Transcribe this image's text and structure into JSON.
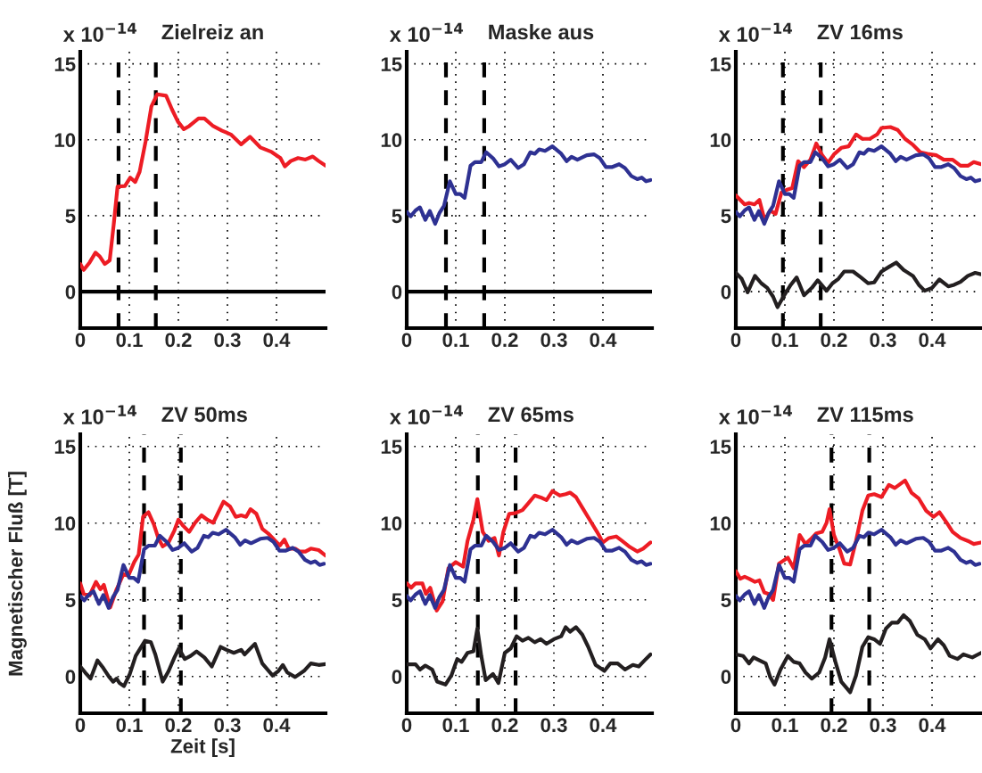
{
  "chart_data": [
    {
      "type": "line",
      "title": "Zielreiz an",
      "annotations": [
        "x 10$^{−14}$"
      ],
      "xlim": [
        0,
        0.5
      ],
      "ylim": [
        -2.4,
        15.8
      ],
      "xticks": [
        0,
        0.1,
        0.2,
        0.3,
        0.4
      ],
      "yticks": [
        0,
        5,
        10,
        15
      ],
      "grid": true,
      "ref_lines": [
        {
          "axis": "y",
          "value": 0,
          "line_style": "solid",
          "color": "#000000"
        },
        {
          "axis": "x",
          "value": 0.078,
          "line_style": "dashed",
          "color": "#000000"
        },
        {
          "axis": "x",
          "value": 0.154,
          "line_style": "dashed",
          "color": "#000000"
        }
      ],
      "series": [
        {
          "color": "#ed1c24",
          "x": [
            0,
            0.007,
            0.019,
            0.031,
            0.04,
            0.05,
            0.06,
            0.068,
            0.076,
            0.091,
            0.102,
            0.112,
            0.121,
            0.133,
            0.145,
            0.157,
            0.175,
            0.187,
            0.199,
            0.211,
            0.222,
            0.241,
            0.253,
            0.271,
            0.289,
            0.307,
            0.328,
            0.346,
            0.367,
            0.39,
            0.408,
            0.417,
            0.429,
            0.444,
            0.459,
            0.474,
            0.486,
            0.5
          ],
          "values": [
            1.82,
            1.43,
            1.92,
            2.57,
            2.31,
            1.82,
            2.06,
            4.37,
            6.92,
            6.96,
            7.51,
            7.22,
            7.9,
            9.86,
            12.2,
            13.0,
            12.9,
            12.0,
            11.2,
            10.7,
            10.9,
            11.4,
            11.4,
            10.9,
            10.6,
            10.35,
            9.7,
            10.2,
            9.5,
            9.2,
            8.8,
            8.25,
            8.6,
            8.8,
            8.7,
            8.9,
            8.6,
            8.3
          ]
        }
      ]
    },
    {
      "type": "line",
      "title": "Maske aus",
      "annotations": [
        "x 10$^{−14}$"
      ],
      "xlim": [
        0,
        0.5
      ],
      "ylim": [
        -2.4,
        15.8
      ],
      "xticks": [
        0,
        0.1,
        0.2,
        0.3,
        0.4
      ],
      "yticks": [
        0,
        5,
        10,
        15
      ],
      "grid": true,
      "ref_lines": [
        {
          "axis": "y",
          "value": 0,
          "line_style": "solid",
          "color": "#000000"
        },
        {
          "axis": "x",
          "value": 0.08,
          "line_style": "dashed",
          "color": "#000000"
        },
        {
          "axis": "x",
          "value": 0.158,
          "line_style": "dashed",
          "color": "#000000"
        }
      ],
      "series": [
        {
          "color": "#2e3192",
          "x": [
            0,
            0.008,
            0.018,
            0.027,
            0.038,
            0.047,
            0.058,
            0.067,
            0.076,
            0.088,
            0.1,
            0.109,
            0.118,
            0.13,
            0.139,
            0.152,
            0.162,
            0.176,
            0.188,
            0.2,
            0.212,
            0.227,
            0.239,
            0.252,
            0.261,
            0.27,
            0.282,
            0.297,
            0.315,
            0.326,
            0.336,
            0.348,
            0.367,
            0.382,
            0.394,
            0.406,
            0.418,
            0.433,
            0.445,
            0.458,
            0.47,
            0.479,
            0.488,
            0.497
          ],
          "values": [
            5.25,
            4.96,
            5.35,
            5.55,
            4.73,
            5.31,
            4.47,
            5.2,
            5.65,
            7.27,
            6.43,
            6.43,
            6.18,
            8.29,
            8.53,
            8.53,
            9.18,
            8.78,
            8.25,
            8.39,
            8.69,
            8.14,
            8.39,
            9.18,
            9.08,
            9.37,
            9.27,
            9.57,
            9.08,
            8.59,
            8.88,
            8.69,
            8.98,
            9.04,
            8.78,
            8.2,
            8.2,
            8.39,
            8.14,
            7.61,
            7.41,
            7.51,
            7.27,
            7.35
          ]
        }
      ]
    },
    {
      "type": "line",
      "title": "ZV 16ms",
      "annotations": [
        "x 10$^{−14}$"
      ],
      "xlim": [
        0,
        0.5
      ],
      "ylim": [
        -2.4,
        15.8
      ],
      "xticks": [
        0,
        0.1,
        0.2,
        0.3,
        0.4
      ],
      "yticks": [
        0,
        5,
        10,
        15
      ],
      "grid": true,
      "ref_lines": [
        {
          "axis": "x",
          "value": 0.096,
          "line_style": "dashed",
          "color": "#000000"
        },
        {
          "axis": "x",
          "value": 0.173,
          "line_style": "dashed",
          "color": "#000000"
        }
      ],
      "series": [
        {
          "color": "#ed1c24",
          "x": [
            0,
            0.009,
            0.018,
            0.027,
            0.038,
            0.048,
            0.059,
            0.07,
            0.081,
            0.093,
            0.106,
            0.115,
            0.127,
            0.139,
            0.152,
            0.164,
            0.176,
            0.188,
            0.2,
            0.215,
            0.23,
            0.245,
            0.258,
            0.273,
            0.288,
            0.297,
            0.315,
            0.33,
            0.345,
            0.361,
            0.376,
            0.391,
            0.409,
            0.424,
            0.442,
            0.458,
            0.473,
            0.485,
            0.5
          ],
          "values": [
            6.33,
            6.04,
            5.75,
            5.84,
            5.75,
            6.04,
            4.67,
            5.35,
            5.12,
            6.53,
            6.73,
            6.82,
            8.59,
            8.2,
            8.69,
            9.76,
            8.98,
            8.49,
            9.04,
            9.47,
            9.57,
            10.35,
            10.06,
            10.06,
            10.35,
            10.78,
            10.84,
            10.65,
            10.06,
            9.67,
            9.18,
            9.08,
            8.98,
            8.69,
            8.69,
            8.29,
            8.29,
            8.53,
            8.39
          ]
        },
        {
          "color": "#2e3192",
          "x": [
            0,
            0.008,
            0.018,
            0.027,
            0.038,
            0.047,
            0.058,
            0.067,
            0.076,
            0.088,
            0.1,
            0.109,
            0.118,
            0.13,
            0.139,
            0.152,
            0.162,
            0.176,
            0.188,
            0.2,
            0.212,
            0.227,
            0.239,
            0.252,
            0.261,
            0.27,
            0.282,
            0.297,
            0.315,
            0.326,
            0.336,
            0.348,
            0.367,
            0.382,
            0.394,
            0.406,
            0.418,
            0.433,
            0.445,
            0.458,
            0.47,
            0.479,
            0.488,
            0.497
          ],
          "values": [
            5.25,
            4.96,
            5.35,
            5.55,
            4.73,
            5.31,
            4.47,
            5.2,
            5.65,
            7.27,
            6.43,
            6.43,
            6.18,
            8.29,
            8.53,
            8.53,
            9.18,
            8.78,
            8.25,
            8.39,
            8.69,
            8.14,
            8.39,
            9.18,
            9.08,
            9.37,
            9.27,
            9.57,
            9.08,
            8.59,
            8.88,
            8.69,
            8.98,
            9.04,
            8.78,
            8.2,
            8.2,
            8.39,
            8.14,
            7.61,
            7.41,
            7.51,
            7.27,
            7.35
          ]
        },
        {
          "color": "#231f20",
          "x": [
            0,
            0.012,
            0.024,
            0.039,
            0.052,
            0.064,
            0.076,
            0.085,
            0.097,
            0.112,
            0.124,
            0.139,
            0.155,
            0.167,
            0.185,
            0.197,
            0.209,
            0.221,
            0.239,
            0.255,
            0.27,
            0.282,
            0.297,
            0.312,
            0.327,
            0.342,
            0.361,
            0.373,
            0.385,
            0.4,
            0.415,
            0.433,
            0.445,
            0.458,
            0.473,
            0.488,
            0.5
          ],
          "values": [
            1.24,
            0.84,
            -0.04,
            1.04,
            0.55,
            0.25,
            -0.33,
            -1.02,
            -0.33,
            0.45,
            0.94,
            -0.24,
            0.25,
            0.75,
            0.06,
            0.55,
            0.84,
            1.33,
            1.33,
            0.94,
            0.55,
            0.61,
            1.33,
            1.63,
            1.92,
            1.43,
            1.04,
            0.45,
            0.06,
            0.25,
            0.8,
            0.35,
            0.45,
            0.65,
            1.04,
            1.24,
            1.14
          ]
        }
      ]
    },
    {
      "type": "line",
      "title": "ZV 50ms",
      "annotations": [
        "x 10$^{−14}$"
      ],
      "xlabel": "Zeit [s]",
      "ylabel": "Magnetischer Fluß [T]",
      "xlim": [
        0,
        0.5
      ],
      "ylim": [
        -2.4,
        15.8
      ],
      "xticks": [
        0,
        0.1,
        0.2,
        0.3,
        0.4
      ],
      "yticks": [
        0,
        5,
        10,
        15
      ],
      "grid": true,
      "ref_lines": [
        {
          "axis": "x",
          "value": 0.13,
          "line_style": "dashed",
          "color": "#000000"
        },
        {
          "axis": "x",
          "value": 0.205,
          "line_style": "dashed",
          "color": "#000000"
        }
      ],
      "series": [
        {
          "color": "#ed1c24",
          "x": [
            0,
            0.007,
            0.019,
            0.032,
            0.041,
            0.048,
            0.061,
            0.074,
            0.088,
            0.098,
            0.11,
            0.119,
            0.128,
            0.139,
            0.15,
            0.159,
            0.168,
            0.18,
            0.192,
            0.2,
            0.21,
            0.222,
            0.234,
            0.247,
            0.259,
            0.271,
            0.28,
            0.292,
            0.305,
            0.317,
            0.328,
            0.338,
            0.347,
            0.359,
            0.371,
            0.383,
            0.395,
            0.407,
            0.416,
            0.425,
            0.438,
            0.447,
            0.459,
            0.47,
            0.486,
            0.5
          ],
          "values": [
            6.07,
            5.38,
            5.29,
            6.17,
            5.68,
            5.98,
            4.5,
            5.68,
            6.67,
            6.57,
            7.46,
            7.95,
            10.41,
            10.71,
            9.92,
            9.03,
            8.48,
            8.74,
            9.53,
            10.22,
            9.82,
            9.43,
            10.02,
            10.51,
            10.22,
            10.02,
            10.61,
            11.4,
            11.1,
            10.41,
            10.51,
            10.41,
            10.91,
            10.61,
            9.63,
            9.33,
            8.93,
            8.54,
            8.93,
            8.34,
            8.34,
            8.15,
            8.15,
            8.34,
            8.24,
            7.89
          ]
        },
        {
          "color": "#2e3192",
          "x": [
            0,
            0.008,
            0.018,
            0.027,
            0.038,
            0.047,
            0.058,
            0.067,
            0.076,
            0.088,
            0.1,
            0.109,
            0.118,
            0.13,
            0.139,
            0.152,
            0.162,
            0.176,
            0.188,
            0.2,
            0.212,
            0.227,
            0.239,
            0.252,
            0.261,
            0.27,
            0.282,
            0.297,
            0.315,
            0.326,
            0.336,
            0.348,
            0.367,
            0.382,
            0.394,
            0.406,
            0.418,
            0.433,
            0.445,
            0.458,
            0.47,
            0.479,
            0.488,
            0.497
          ],
          "values": [
            5.25,
            4.96,
            5.35,
            5.55,
            4.73,
            5.31,
            4.47,
            5.2,
            5.65,
            7.27,
            6.43,
            6.43,
            6.18,
            8.29,
            8.53,
            8.53,
            9.18,
            8.78,
            8.25,
            8.39,
            8.69,
            8.14,
            8.39,
            9.18,
            9.08,
            9.37,
            9.27,
            9.57,
            9.08,
            8.59,
            8.88,
            8.69,
            8.98,
            9.04,
            8.78,
            8.2,
            8.2,
            8.39,
            8.14,
            7.61,
            7.41,
            7.51,
            7.27,
            7.35
          ]
        },
        {
          "color": "#231f20",
          "x": [
            0,
            0.01,
            0.021,
            0.035,
            0.047,
            0.059,
            0.067,
            0.074,
            0.08,
            0.089,
            0.101,
            0.113,
            0.132,
            0.144,
            0.153,
            0.168,
            0.18,
            0.192,
            0.201,
            0.213,
            0.225,
            0.237,
            0.253,
            0.268,
            0.286,
            0.298,
            0.313,
            0.328,
            0.335,
            0.356,
            0.371,
            0.392,
            0.404,
            0.413,
            0.422,
            0.438,
            0.456,
            0.47,
            0.486,
            0.5
          ],
          "values": [
            0.65,
            0.26,
            -0.14,
            1.05,
            0.55,
            -0.04,
            -0.34,
            -0.14,
            -0.43,
            -0.63,
            0.16,
            1.34,
            2.33,
            2.23,
            1.44,
            -0.34,
            0.35,
            1.24,
            1.83,
            1.14,
            1.34,
            1.64,
            1.24,
            0.65,
            1.93,
            1.74,
            1.54,
            1.74,
            1.44,
            2.13,
            0.85,
            0.06,
            0.36,
            0.75,
            0.26,
            -0.04,
            0.36,
            0.85,
            0.75,
            0.81
          ]
        }
      ]
    },
    {
      "type": "line",
      "title": "ZV 65ms",
      "annotations": [
        "x 10$^{−14}$"
      ],
      "xlim": [
        0,
        0.5
      ],
      "ylim": [
        -2.4,
        15.8
      ],
      "xticks": [
        0,
        0.1,
        0.2,
        0.3,
        0.4
      ],
      "yticks": [
        0,
        5,
        10,
        15
      ],
      "grid": true,
      "ref_lines": [
        {
          "axis": "x",
          "value": 0.145,
          "line_style": "dashed",
          "color": "#000000"
        },
        {
          "axis": "x",
          "value": 0.222,
          "line_style": "dashed",
          "color": "#000000"
        }
      ],
      "series": [
        {
          "color": "#ed1c24",
          "x": [
            0,
            0.009,
            0.018,
            0.032,
            0.039,
            0.048,
            0.061,
            0.073,
            0.085,
            0.1,
            0.115,
            0.124,
            0.136,
            0.144,
            0.155,
            0.167,
            0.179,
            0.188,
            0.197,
            0.209,
            0.221,
            0.236,
            0.248,
            0.261,
            0.276,
            0.285,
            0.297,
            0.312,
            0.324,
            0.333,
            0.345,
            0.358,
            0.373,
            0.388,
            0.4,
            0.412,
            0.427,
            0.439,
            0.455,
            0.47,
            0.482,
            0.497
          ],
          "values": [
            6.07,
            5.78,
            6.07,
            6.07,
            5.38,
            5.78,
            4.3,
            4.89,
            7.06,
            7.46,
            7.16,
            8.84,
            10.22,
            11.56,
            9.43,
            8.84,
            9.03,
            7.89,
            9.43,
            10.61,
            10.65,
            10.85,
            11.3,
            11.8,
            11.64,
            11.5,
            12.09,
            11.8,
            11.89,
            11.99,
            11.7,
            11.01,
            10.22,
            9.43,
            8.74,
            9.03,
            9.13,
            8.84,
            8.44,
            8.15,
            8.34,
            8.74
          ]
        },
        {
          "color": "#2e3192",
          "x": [
            0,
            0.008,
            0.018,
            0.027,
            0.038,
            0.047,
            0.058,
            0.067,
            0.076,
            0.088,
            0.1,
            0.109,
            0.118,
            0.13,
            0.139,
            0.152,
            0.162,
            0.176,
            0.188,
            0.2,
            0.212,
            0.227,
            0.239,
            0.252,
            0.261,
            0.27,
            0.282,
            0.297,
            0.315,
            0.326,
            0.336,
            0.348,
            0.367,
            0.382,
            0.394,
            0.406,
            0.418,
            0.433,
            0.445,
            0.458,
            0.47,
            0.479,
            0.488,
            0.497
          ],
          "values": [
            5.25,
            4.96,
            5.35,
            5.55,
            4.73,
            5.31,
            4.47,
            5.2,
            5.65,
            7.27,
            6.43,
            6.43,
            6.18,
            8.29,
            8.53,
            8.53,
            9.18,
            8.78,
            8.25,
            8.39,
            8.69,
            8.14,
            8.39,
            9.18,
            9.08,
            9.37,
            9.27,
            9.57,
            9.08,
            8.59,
            8.88,
            8.69,
            8.98,
            9.04,
            8.78,
            8.2,
            8.2,
            8.39,
            8.14,
            7.61,
            7.41,
            7.51,
            7.27,
            7.35
          ]
        },
        {
          "color": "#231f20",
          "x": [
            0,
            0.018,
            0.027,
            0.038,
            0.052,
            0.062,
            0.079,
            0.091,
            0.103,
            0.112,
            0.124,
            0.136,
            0.144,
            0.152,
            0.161,
            0.176,
            0.187,
            0.2,
            0.212,
            0.224,
            0.236,
            0.248,
            0.261,
            0.273,
            0.285,
            0.3,
            0.315,
            0.324,
            0.333,
            0.345,
            0.358,
            0.37,
            0.385,
            0.403,
            0.415,
            0.43,
            0.445,
            0.461,
            0.473,
            0.485,
            0.497
          ],
          "values": [
            0.79,
            0.79,
            0.45,
            0.71,
            0.45,
            -0.34,
            -0.53,
            0.06,
            1.14,
            0.95,
            1.54,
            1.64,
            3.12,
            1.34,
            -0.24,
            0.16,
            -0.43,
            1.54,
            1.83,
            2.62,
            2.33,
            2.52,
            2.23,
            2.43,
            2.13,
            2.43,
            2.62,
            3.22,
            2.92,
            3.22,
            2.72,
            1.93,
            0.75,
            0.36,
            0.85,
            0.85,
            0.45,
            0.75,
            0.65,
            1.05,
            1.44
          ]
        }
      ]
    },
    {
      "type": "line",
      "title": "ZV 115ms",
      "annotations": [
        "x 10$^{−14}$"
      ],
      "xlim": [
        0,
        0.5
      ],
      "ylim": [
        -2.4,
        15.8
      ],
      "xticks": [
        0,
        0.1,
        0.2,
        0.3,
        0.4
      ],
      "yticks": [
        0,
        5,
        10,
        15
      ],
      "grid": true,
      "ref_lines": [
        {
          "axis": "x",
          "value": 0.195,
          "line_style": "dashed",
          "color": "#000000"
        },
        {
          "axis": "x",
          "value": 0.272,
          "line_style": "dashed",
          "color": "#000000"
        }
      ],
      "series": [
        {
          "color": "#ed1c24",
          "x": [
            0,
            0.009,
            0.018,
            0.027,
            0.039,
            0.048,
            0.058,
            0.067,
            0.076,
            0.088,
            0.106,
            0.118,
            0.13,
            0.142,
            0.155,
            0.164,
            0.176,
            0.185,
            0.191,
            0.2,
            0.212,
            0.221,
            0.233,
            0.245,
            0.258,
            0.27,
            0.282,
            0.297,
            0.312,
            0.324,
            0.345,
            0.358,
            0.373,
            0.388,
            0.403,
            0.415,
            0.43,
            0.442,
            0.458,
            0.473,
            0.485,
            0.5
          ],
          "values": [
            6.86,
            6.37,
            6.5,
            6.37,
            6.17,
            6.27,
            5.48,
            5.38,
            4.99,
            7.36,
            7.75,
            7.06,
            9.23,
            8.64,
            9.03,
            9.33,
            9.43,
            10.02,
            10.91,
            9.23,
            8.24,
            7.36,
            7.3,
            8.84,
            10.81,
            11.8,
            11.89,
            11.7,
            12.49,
            12.29,
            12.78,
            11.99,
            11.6,
            10.81,
            10.41,
            10.71,
            10.02,
            9.43,
            9.03,
            8.84,
            8.64,
            8.74
          ]
        },
        {
          "color": "#2e3192",
          "x": [
            0,
            0.008,
            0.018,
            0.027,
            0.038,
            0.047,
            0.058,
            0.067,
            0.076,
            0.088,
            0.1,
            0.109,
            0.118,
            0.13,
            0.139,
            0.152,
            0.162,
            0.176,
            0.188,
            0.2,
            0.212,
            0.227,
            0.239,
            0.252,
            0.261,
            0.27,
            0.282,
            0.297,
            0.315,
            0.326,
            0.336,
            0.348,
            0.367,
            0.382,
            0.394,
            0.406,
            0.418,
            0.433,
            0.445,
            0.458,
            0.47,
            0.479,
            0.488,
            0.497
          ],
          "values": [
            5.25,
            4.96,
            5.35,
            5.55,
            4.73,
            5.31,
            4.47,
            5.2,
            5.65,
            7.27,
            6.43,
            6.43,
            6.18,
            8.29,
            8.53,
            8.53,
            9.18,
            8.78,
            8.25,
            8.39,
            8.69,
            8.14,
            8.39,
            9.18,
            9.08,
            9.37,
            9.27,
            9.57,
            9.08,
            8.59,
            8.88,
            8.69,
            8.98,
            9.04,
            8.78,
            8.2,
            8.2,
            8.39,
            8.14,
            7.61,
            7.41,
            7.51,
            7.27,
            7.35
          ]
        },
        {
          "color": "#231f20",
          "x": [
            0,
            0.015,
            0.027,
            0.036,
            0.048,
            0.061,
            0.07,
            0.079,
            0.091,
            0.106,
            0.118,
            0.13,
            0.142,
            0.155,
            0.17,
            0.182,
            0.191,
            0.203,
            0.215,
            0.233,
            0.245,
            0.258,
            0.27,
            0.282,
            0.294,
            0.306,
            0.318,
            0.33,
            0.342,
            0.355,
            0.37,
            0.385,
            0.397,
            0.412,
            0.424,
            0.436,
            0.452,
            0.464,
            0.482,
            0.5
          ],
          "values": [
            1.44,
            1.34,
            0.85,
            1.24,
            1.05,
            0.85,
            -0.04,
            -0.53,
            0.45,
            1.34,
            0.95,
            0.85,
            0.26,
            -0.14,
            0.26,
            1.24,
            2.43,
            0.95,
            -0.34,
            -1.03,
            0.06,
            1.93,
            2.56,
            2.43,
            2.13,
            3.12,
            3.51,
            3.51,
            4.0,
            3.61,
            2.72,
            2.43,
            1.83,
            2.43,
            2.03,
            1.34,
            1.14,
            1.44,
            1.24,
            1.54
          ]
        }
      ]
    }
  ]
}
